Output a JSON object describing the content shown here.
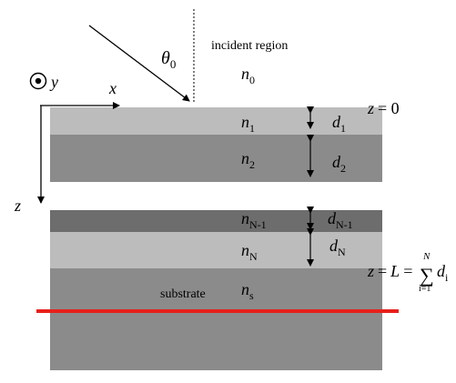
{
  "angle_label": "θ",
  "angle_sub": "0",
  "incident_region": "incident region",
  "n0": {
    "base": "n",
    "sub": "0"
  },
  "y_axis": "y",
  "x_axis": "x",
  "z_axis": "z",
  "layers": [
    {
      "n_base": "n",
      "n_sub": "1",
      "d_base": "d",
      "d_sub": "1",
      "color": "#bcbcbc"
    },
    {
      "n_base": "n",
      "n_sub": "2",
      "d_base": "d",
      "d_sub": "2",
      "color": "#8b8b8b"
    },
    {
      "n_base": "n",
      "n_sub": "N-1",
      "d_base": "d",
      "d_sub": "N-1",
      "color": "#6d6d6d"
    },
    {
      "n_base": "n",
      "n_sub": "N",
      "d_base": "d",
      "d_sub": "N",
      "color": "#bcbcbc"
    }
  ],
  "substrate": {
    "label": "substrate",
    "n_base": "n",
    "n_sub": "s",
    "color": "#8b8b8b"
  },
  "top_interface": {
    "z": "z",
    "eq": "= 0"
  },
  "bottom_interface": {
    "z": "z",
    "eq1": "=",
    "L": "L",
    "eq2": "=",
    "sigma": "∑",
    "sum_top": "N",
    "sum_bottom": "i=1",
    "d_base": "d",
    "d_sub": "i"
  },
  "highlight_line_color": "#e8201a"
}
